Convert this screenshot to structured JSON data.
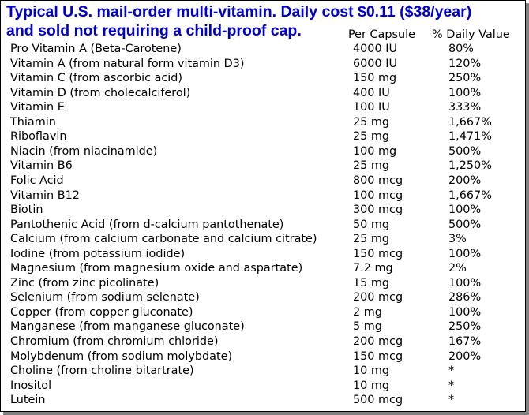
{
  "title": {
    "line1": "Typical U.S. mail-order multi-vitamin. Daily cost $0.11 ($38/year)",
    "line2": "and sold not requiring a child-proof cap.",
    "color": "#0000cc"
  },
  "columns": {
    "amount": "Per Capsule",
    "daily_value": "% Daily Value"
  },
  "rows": [
    {
      "name": "Pro Vitamin A (Beta-Carotene)",
      "amount": "4000 IU",
      "dv": "80%"
    },
    {
      "name": "Vitamin A (from natural form vitamin D3)",
      "amount": "6000 IU",
      "dv": "120%"
    },
    {
      "name": "Vitamin C (from ascorbic acid)",
      "amount": "150 mg",
      "dv": "250%"
    },
    {
      "name": "Vitamin D (from cholecalciferol)",
      "amount": "400 IU",
      "dv": "100%"
    },
    {
      "name": "Vitamin E",
      "amount": "100 IU",
      "dv": "333%"
    },
    {
      "name": "Thiamin",
      "amount": "25 mg",
      "dv": "1,667%"
    },
    {
      "name": "Riboflavin",
      "amount": "25 mg",
      "dv": "1,471%"
    },
    {
      "name": "Niacin (from niacinamide)",
      "amount": "100 mg",
      "dv": "500%"
    },
    {
      "name": "Vitamin B6",
      "amount": "25 mg",
      "dv": "1,250%"
    },
    {
      "name": "Folic Acid",
      "amount": "800 mcg",
      "dv": "200%"
    },
    {
      "name": "Vitamin B12",
      "amount": "100 mcg",
      "dv": "1,667%"
    },
    {
      "name": "Biotin",
      "amount": "300 mcg",
      "dv": "100%"
    },
    {
      "name": "Pantothenic Acid (from d-calcium pantothenate)",
      "amount": "50 mg",
      "dv": "500%"
    },
    {
      "name": "Calcium (from calcium carbonate and calcium citrate)",
      "amount": "25 mg",
      "dv": "3%"
    },
    {
      "name": "Iodine (from potassium iodide)",
      "amount": "150 mcg",
      "dv": "100%"
    },
    {
      "name": "Magnesium (from magnesium oxide and aspartate)",
      "amount": "7.2 mg",
      "dv": "2%"
    },
    {
      "name": "Zinc (from zinc picolinate)",
      "amount": "15 mg",
      "dv": "100%"
    },
    {
      "name": "Selenium (from sodium selenate)",
      "amount": "200 mcg",
      "dv": "286%"
    },
    {
      "name": "Copper (from copper gluconate)",
      "amount": "2 mg",
      "dv": "100%"
    },
    {
      "name": "Manganese (from manganese gluconate)",
      "amount": "5 mg",
      "dv": "250%"
    },
    {
      "name": "Chromium (from chromium chloride)",
      "amount": "200 mcg",
      "dv": "167%"
    },
    {
      "name": "Molybdenum (from sodium molybdate)",
      "amount": "150 mcg",
      "dv": "200%"
    },
    {
      "name": "Choline (from choline bitartrate)",
      "amount": "10 mg",
      "dv": "*"
    },
    {
      "name": "Inositol",
      "amount": "10 mg",
      "dv": "*"
    },
    {
      "name": "Lutein",
      "amount": "500 mcg",
      "dv": "*"
    }
  ]
}
